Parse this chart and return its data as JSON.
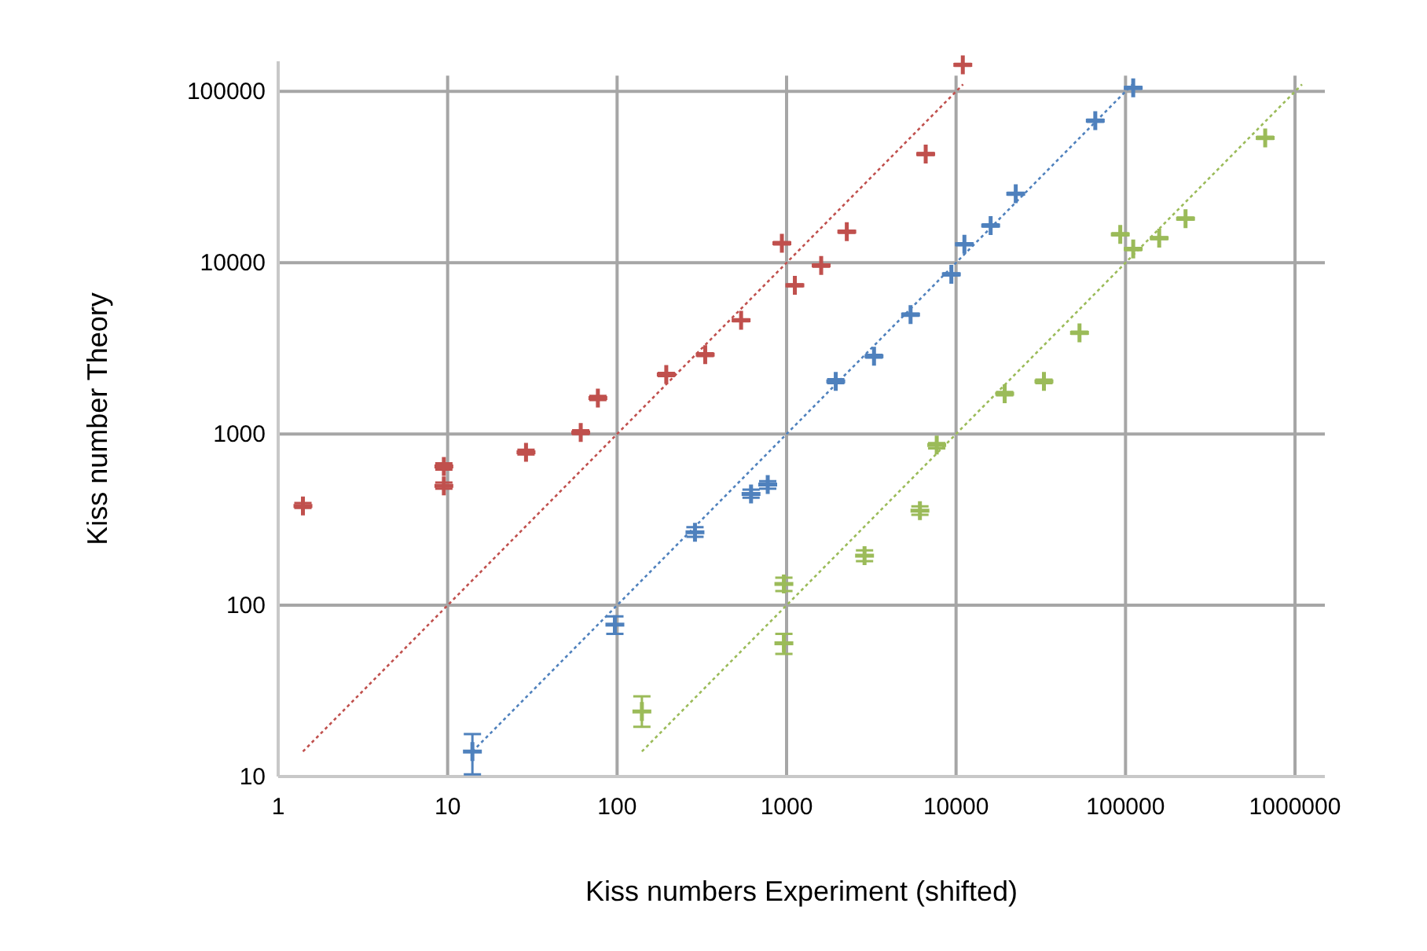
{
  "chart_data": {
    "type": "scatter",
    "xlabel": "Kiss numbers Experiment (shifted)",
    "ylabel": "Kiss number Theory",
    "log": "xy",
    "grid": true,
    "marker": "cross",
    "xlim": [
      1,
      1500000
    ],
    "ylim": [
      10,
      150000
    ],
    "xticks": [
      1,
      10,
      100,
      1000,
      10000,
      100000,
      1000000
    ],
    "yticks": [
      10,
      100,
      1000,
      10000,
      100000
    ],
    "series": [
      {
        "color": "#c0504d",
        "x": [
          1.4,
          9.5,
          9.5,
          29,
          61,
          77,
          195,
          331,
          539,
          938,
          1119,
          1600,
          2266,
          6620,
          10960
        ],
        "values": [
          380,
          647,
          497,
          781,
          1020,
          1622,
          2223,
          2904,
          4613,
          13000,
          7380,
          9640,
          15170,
          43100,
          143000
        ],
        "errors": [
          [
            370,
            395
          ],
          [
            620,
            675
          ],
          [
            480,
            520
          ],
          [
            760,
            810
          ],
          [
            1000,
            1050
          ],
          [
            1580,
            1670
          ],
          [
            2180,
            2270
          ],
          [
            2850,
            2960
          ],
          [
            4550,
            4680
          ],
          [
            12800,
            13200
          ],
          [
            7280,
            7480
          ],
          [
            9500,
            9780
          ],
          [
            14950,
            15400
          ],
          [
            42500,
            43700
          ],
          [
            141000,
            145000
          ]
        ]
      },
      {
        "color": "#4f81bd",
        "x": [
          14,
          97,
          288,
          617,
          774,
          1950,
          3280,
          5390,
          9380,
          11200,
          16000,
          22500,
          66300,
          111000
        ],
        "values": [
          14,
          77,
          267,
          447,
          507,
          2030,
          2845,
          4975,
          8550,
          12830,
          16500,
          25300,
          67500,
          105000
        ],
        "errors": [
          [
            10.3,
            17.7
          ],
          [
            68,
            86
          ],
          [
            251,
            286
          ],
          [
            425,
            473
          ],
          [
            480,
            530
          ],
          [
            1980,
            2090
          ],
          [
            2790,
            2900
          ],
          [
            4900,
            5050
          ],
          [
            8420,
            8680
          ],
          [
            12650,
            13000
          ],
          [
            16250,
            16750
          ],
          [
            24950,
            25650
          ],
          [
            66500,
            68500
          ],
          [
            103500,
            106500
          ]
        ]
      },
      {
        "color": "#9bbb59",
        "x": [
          140,
          964,
          964,
          2884,
          6120,
          7690,
          19360,
          33000,
          53500,
          93100,
          111000,
          158000,
          226000,
          667000
        ],
        "values": [
          24,
          60,
          133,
          195,
          357,
          863,
          1717,
          2030,
          3900,
          14650,
          12020,
          13930,
          18100,
          53600
        ],
        "errors": [
          [
            19.5,
            29.4
          ],
          [
            52,
            68
          ],
          [
            121,
            145
          ],
          [
            181,
            209
          ],
          [
            337,
            378
          ],
          [
            823,
            885
          ],
          [
            1680,
            1760
          ],
          [
            1980,
            2080
          ],
          [
            3840,
            3960
          ],
          [
            14450,
            14850
          ],
          [
            11850,
            12200
          ],
          [
            13750,
            14100
          ],
          [
            17850,
            18350
          ],
          [
            52800,
            54400
          ]
        ]
      },
      {
        "type": "line",
        "color": "#c0504d",
        "line_style": "dotted",
        "marker": "none",
        "x": [
          1.4,
          11000
        ],
        "values": [
          14,
          110000
        ]
      },
      {
        "type": "line",
        "color": "#4f81bd",
        "line_style": "dotted",
        "marker": "none",
        "x": [
          14,
          110000
        ],
        "values": [
          14,
          110000
        ]
      },
      {
        "type": "line",
        "color": "#9bbb59",
        "line_style": "dotted",
        "marker": "none",
        "x": [
          140,
          1100000
        ],
        "values": [
          14,
          110000
        ]
      }
    ]
  }
}
